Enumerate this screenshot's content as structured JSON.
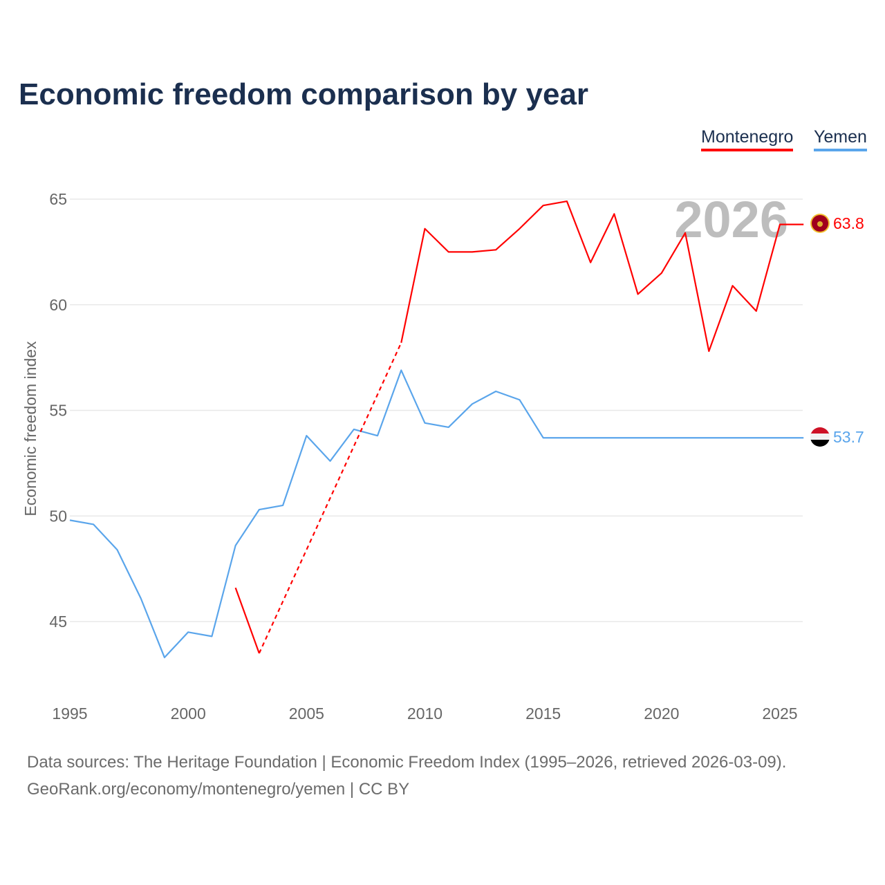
{
  "title": "Economic freedom comparison by year",
  "footer": {
    "line1": "Data sources: The Heritage Foundation | Economic Freedom Index (1995–2026, retrieved 2026-03-09).",
    "line2": "GeoRank.org/economy/montenegro/yemen | CC BY"
  },
  "chart_data": {
    "type": "line",
    "title": "Economic freedom comparison by year",
    "xlabel": "",
    "ylabel": "Economic freedom index",
    "xlim": [
      1995,
      2026
    ],
    "ylim": [
      42,
      67
    ],
    "xticks": [
      "1995",
      "2000",
      "2005",
      "2010",
      "2015",
      "2020",
      "2025"
    ],
    "yticks": [
      "45",
      "50",
      "55",
      "60",
      "65"
    ],
    "grid": true,
    "legend_position": "top-right",
    "year_watermark": "2026",
    "x": [
      1995,
      1996,
      1997,
      1998,
      1999,
      2000,
      2001,
      2002,
      2003,
      2004,
      2005,
      2006,
      2007,
      2008,
      2009,
      2010,
      2011,
      2012,
      2013,
      2014,
      2015,
      2016,
      2017,
      2018,
      2019,
      2020,
      2021,
      2022,
      2023,
      2024,
      2025,
      2026
    ],
    "series": [
      {
        "name": "Montenegro",
        "color": "#ff0000",
        "end_label": "63.8",
        "flag": "montenegro-flag",
        "values": [
          null,
          null,
          null,
          null,
          null,
          null,
          null,
          46.6,
          43.5,
          null,
          null,
          null,
          null,
          null,
          58.2,
          63.6,
          62.5,
          62.5,
          62.6,
          63.6,
          64.7,
          64.9,
          62.0,
          64.3,
          60.5,
          61.5,
          63.4,
          57.8,
          60.9,
          59.7,
          63.8,
          63.8
        ]
      },
      {
        "name": "Yemen",
        "color": "#5aa5eb",
        "end_label": "53.7",
        "flag": "yemen-flag",
        "values": [
          49.8,
          49.6,
          48.4,
          46.1,
          43.3,
          44.5,
          44.3,
          48.6,
          50.3,
          50.5,
          53.8,
          52.6,
          54.1,
          53.8,
          56.9,
          54.4,
          54.2,
          55.3,
          55.9,
          55.5,
          53.7,
          53.7,
          53.7,
          53.7,
          53.7,
          53.7,
          53.7,
          53.7,
          53.7,
          53.7,
          53.7,
          53.7
        ]
      }
    ]
  }
}
